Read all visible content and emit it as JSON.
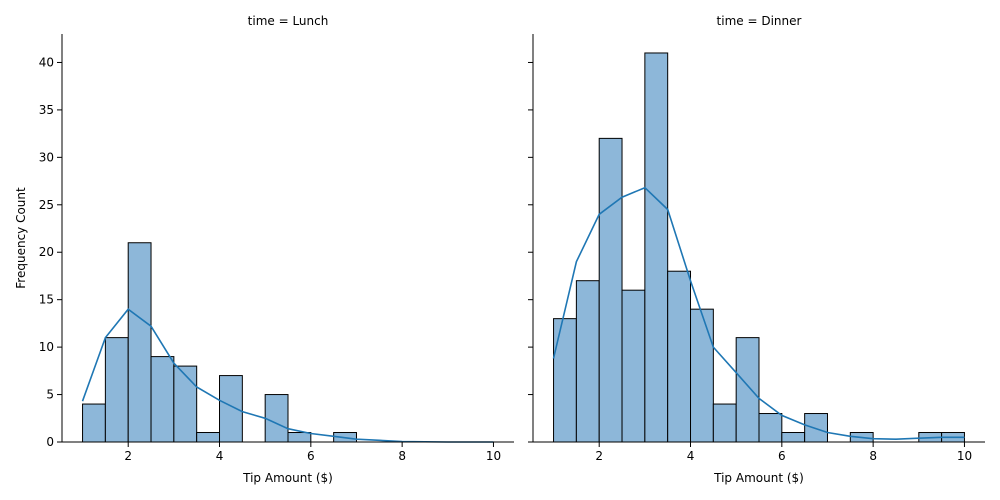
{
  "chart_data": [
    {
      "type": "bar",
      "title": "time = Lunch",
      "xlabel": "Tip Amount ($)",
      "ylabel": "Frequency Count",
      "xlim": [
        0.55,
        10.45
      ],
      "ylim": [
        0,
        43
      ],
      "xticks": [
        "2",
        "4",
        "6",
        "8",
        "10"
      ],
      "yticks": [
        "0",
        "5",
        "10",
        "15",
        "20",
        "25",
        "30",
        "35",
        "40"
      ],
      "bin_edges": [
        1.0,
        1.5,
        2.0,
        2.5,
        3.0,
        3.5,
        4.0,
        4.5,
        5.0,
        5.5,
        6.0,
        6.5,
        7.0
      ],
      "counts": [
        4,
        11,
        21,
        9,
        8,
        1,
        7,
        0,
        5,
        1,
        0,
        1
      ],
      "kde": {
        "x": [
          1.0,
          1.5,
          2.0,
          2.5,
          3.0,
          3.5,
          4.0,
          4.5,
          5.0,
          5.5,
          6.0,
          6.5,
          7.0,
          8.0,
          9.0,
          10.0
        ],
        "y": [
          4.3,
          11.0,
          14.0,
          12.2,
          8.3,
          5.8,
          4.4,
          3.2,
          2.5,
          1.4,
          0.9,
          0.6,
          0.3,
          0.05,
          0.0,
          0.0
        ]
      },
      "grid": false,
      "color": "#1f77b4",
      "bar_fill": "#8db7d9"
    },
    {
      "type": "bar",
      "title": "time = Dinner",
      "xlabel": "Tip Amount ($)",
      "ylabel": "",
      "xlim": [
        0.55,
        10.45
      ],
      "ylim": [
        0,
        43
      ],
      "xticks": [
        "2",
        "4",
        "6",
        "8",
        "10"
      ],
      "yticks": [],
      "bin_edges": [
        1.0,
        1.5,
        2.0,
        2.5,
        3.0,
        3.5,
        4.0,
        4.5,
        5.0,
        5.5,
        6.0,
        6.5,
        7.0,
        7.5,
        8.0,
        8.5,
        9.0,
        9.5,
        10.0
      ],
      "counts": [
        13,
        17,
        32,
        16,
        41,
        18,
        14,
        4,
        11,
        3,
        1,
        3,
        0,
        1,
        0,
        0,
        1,
        1
      ],
      "kde": {
        "x": [
          1.0,
          1.5,
          2.0,
          2.5,
          3.0,
          3.5,
          4.0,
          4.5,
          5.0,
          5.5,
          6.0,
          6.5,
          7.0,
          7.5,
          8.0,
          8.5,
          9.0,
          9.5,
          10.0
        ],
        "y": [
          8.8,
          19.0,
          24.0,
          25.8,
          26.8,
          24.5,
          17.0,
          10.0,
          7.3,
          4.6,
          2.8,
          1.8,
          1.0,
          0.6,
          0.35,
          0.3,
          0.4,
          0.5,
          0.5
        ]
      },
      "grid": false,
      "color": "#1f77b4",
      "bar_fill": "#8db7d9"
    }
  ]
}
